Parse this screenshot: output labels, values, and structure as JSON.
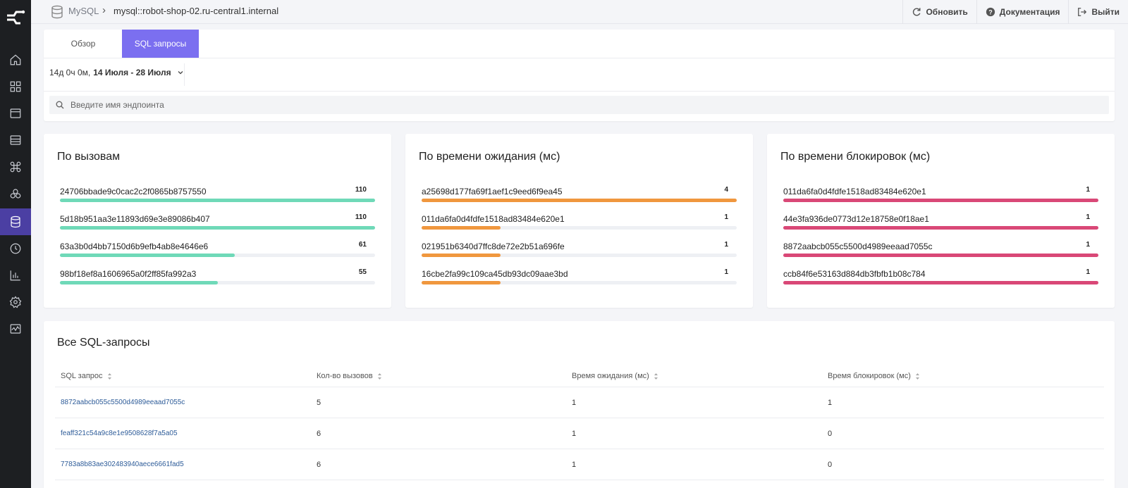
{
  "colors": {
    "sidebar_bg": "#1d1f22",
    "sidebar_active": "#4b3fa3",
    "tab_active": "#7b6ff0",
    "calls_bar": "#6fd9b8",
    "wait_bar": "#f0973e",
    "lock_bar": "#d94877",
    "link": "#2e5c99"
  },
  "sidebar": {
    "items": [
      {
        "icon": "home-icon"
      },
      {
        "icon": "dashboard-grid-icon"
      },
      {
        "icon": "browser-window-icon"
      },
      {
        "icon": "server-list-icon"
      },
      {
        "icon": "command-icon"
      },
      {
        "icon": "services-circles-icon"
      },
      {
        "icon": "database-icon",
        "active": true
      },
      {
        "icon": "clock-icon"
      },
      {
        "icon": "bar-chart-icon"
      },
      {
        "icon": "gear-icon"
      },
      {
        "icon": "activity-monitor-icon"
      }
    ]
  },
  "header": {
    "breadcrumb_root": "MySQL",
    "breadcrumb_separator": "›",
    "breadcrumb_current": "mysql::robot-shop-02.ru-central1.internal",
    "actions": {
      "refresh": "Обновить",
      "docs": "Документация",
      "logout": "Выйти"
    }
  },
  "tabs": {
    "overview": "Обзор",
    "sql": "SQL запросы"
  },
  "period": {
    "duration": "14д 0ч 0м,",
    "range": "14 Июля - 28 Июля"
  },
  "search": {
    "placeholder": "Введите имя эндпоинта"
  },
  "cards": [
    {
      "title": "По вызовам",
      "color": "#6fd9b8",
      "rows": [
        {
          "label": "24706bbade9c0cac2c2f0865b8757550",
          "value": "110",
          "fraction": 1.0
        },
        {
          "label": "5d18b951aa3e11893d69e3e89086b407",
          "value": "110",
          "fraction": 1.0
        },
        {
          "label": "63a3b0d4bb7150d6b9efb4ab8e4646e6",
          "value": "61",
          "fraction": 0.555
        },
        {
          "label": "98bf18ef8a1606965a0f2ff85fa992a3",
          "value": "55",
          "fraction": 0.5
        }
      ]
    },
    {
      "title": "По времени ожидания (мс)",
      "color": "#f0973e",
      "rows": [
        {
          "label": "a25698d177fa69f1aef1c9eed6f9ea45",
          "value": "4",
          "fraction": 1.0
        },
        {
          "label": "011da6fa0d4fdfe1518ad83484e620e1",
          "value": "1",
          "fraction": 0.25
        },
        {
          "label": "021951b6340d7ffc8de72e2b51a696fe",
          "value": "1",
          "fraction": 0.25
        },
        {
          "label": "16cbe2fa99c109ca45db93dc09aae3bd",
          "value": "1",
          "fraction": 0.25
        }
      ]
    },
    {
      "title": "По времени блокировок (мс)",
      "color": "#d94877",
      "rows": [
        {
          "label": "011da6fa0d4fdfe1518ad83484e620e1",
          "value": "1",
          "fraction": 1.0
        },
        {
          "label": "44e3fa936de0773d12e18758e0f18ae1",
          "value": "1",
          "fraction": 1.0
        },
        {
          "label": "8872aabcb055c5500d4989eeaad7055c",
          "value": "1",
          "fraction": 1.0
        },
        {
          "label": "ccb84f6e53163d884db3fbfb1b08c784",
          "value": "1",
          "fraction": 1.0
        }
      ]
    }
  ],
  "table": {
    "title": "Все SQL-запросы",
    "columns": [
      "SQL запрос",
      "Кол-во вызовов",
      "Время ожидания (мс)",
      "Время блокировок (мс)"
    ],
    "rows": [
      [
        "8872aabcb055c5500d4989eeaad7055c",
        "5",
        "1",
        "1"
      ],
      [
        "feaff321c54a9c8e1e9508628f7a5a05",
        "6",
        "1",
        "0"
      ],
      [
        "7783a8b83ae302483940aece6661fad5",
        "6",
        "1",
        "0"
      ]
    ]
  }
}
